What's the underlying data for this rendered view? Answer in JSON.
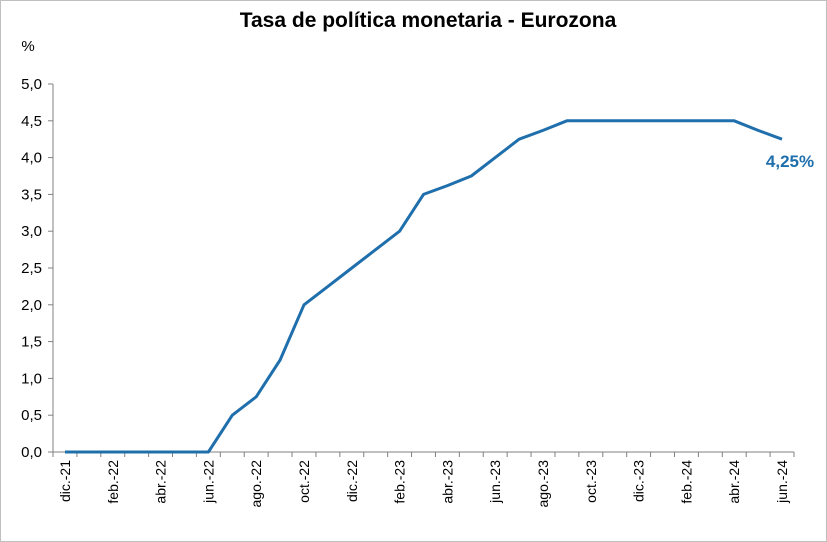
{
  "chart_data": {
    "type": "line",
    "title": "Tasa de política monetaria - Eurozona",
    "unit_label": "%",
    "ylim": [
      0,
      5
    ],
    "y_ticks": [
      "0,0",
      "0,5",
      "1,0",
      "1,5",
      "2,0",
      "2,5",
      "3,0",
      "3,5",
      "4,0",
      "4,5",
      "5,0"
    ],
    "x_tick_labels": [
      "dic.-21",
      "feb.-22",
      "abr.-22",
      "jun.-22",
      "ago.-22",
      "oct.-22",
      "dic.-22",
      "feb.-23",
      "abr.-23",
      "jun.-23",
      "ago.-23",
      "oct.-23",
      "dic.-23",
      "feb.-24",
      "abr.-24",
      "jun.-24"
    ],
    "x": [
      "dic.-21",
      "ene.-22",
      "feb.-22",
      "mar.-22",
      "abr.-22",
      "may.-22",
      "jun.-22",
      "jul.-22",
      "ago.-22",
      "sep.-22",
      "oct.-22",
      "nov.-22",
      "dic.-22",
      "ene.-23",
      "feb.-23",
      "mar.-23",
      "abr.-23",
      "may.-23",
      "jun.-23",
      "jul.-23",
      "ago.-23",
      "sep.-23",
      "oct.-23",
      "nov.-23",
      "dic.-23",
      "ene.-24",
      "feb.-24",
      "mar.-24",
      "abr.-24",
      "may.-24",
      "jun.-24"
    ],
    "series": [
      {
        "values": [
          0,
          0,
          0,
          0,
          0,
          0,
          0,
          0.5,
          0.75,
          1.25,
          2.0,
          2.25,
          2.5,
          2.75,
          3.0,
          3.5,
          3.62,
          3.75,
          4.0,
          4.25,
          4.37,
          4.5,
          4.5,
          4.5,
          4.5,
          4.5,
          4.5,
          4.5,
          4.5,
          4.37,
          4.25
        ],
        "color": "#1f6fad"
      }
    ],
    "data_label": "4,25%",
    "data_label_color": "#1f6fad",
    "grid": false,
    "legend": "none"
  }
}
